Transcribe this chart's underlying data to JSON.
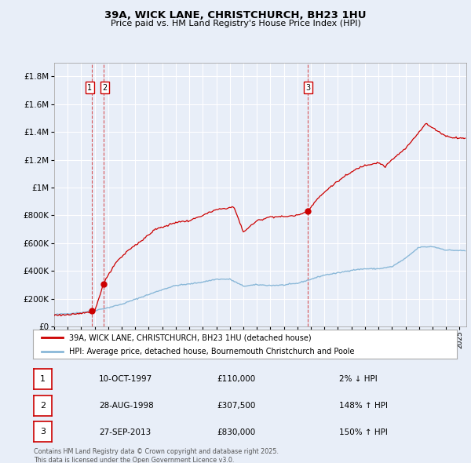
{
  "title": "39A, WICK LANE, CHRISTCHURCH, BH23 1HU",
  "subtitle": "Price paid vs. HM Land Registry's House Price Index (HPI)",
  "bg_color": "#e8eef8",
  "plot_bg_color": "#e8eef8",
  "red_color": "#cc0000",
  "blue_color": "#8ab8d8",
  "grid_color": "#ffffff",
  "sale_points": [
    {
      "date": 1997.78,
      "price": 110000,
      "label": "1"
    },
    {
      "date": 1998.65,
      "price": 307500,
      "label": "2"
    },
    {
      "date": 2013.74,
      "price": 830000,
      "label": "3"
    }
  ],
  "vline_dates": [
    1997.78,
    1998.65,
    2013.74
  ],
  "legend_entries": [
    "39A, WICK LANE, CHRISTCHURCH, BH23 1HU (detached house)",
    "HPI: Average price, detached house, Bournemouth Christchurch and Poole"
  ],
  "table_rows": [
    {
      "num": "1",
      "date": "10-OCT-1997",
      "price": "£110,000",
      "change": "2% ↓ HPI"
    },
    {
      "num": "2",
      "date": "28-AUG-1998",
      "price": "£307,500",
      "change": "148% ↑ HPI"
    },
    {
      "num": "3",
      "date": "27-SEP-2013",
      "price": "£830,000",
      "change": "150% ↑ HPI"
    }
  ],
  "footer": "Contains HM Land Registry data © Crown copyright and database right 2025.\nThis data is licensed under the Open Government Licence v3.0.",
  "ylim": [
    0,
    1900000
  ],
  "xlim": [
    1995,
    2025.5
  ],
  "yticks": [
    0,
    200000,
    400000,
    600000,
    800000,
    1000000,
    1200000,
    1400000,
    1600000,
    1800000
  ],
  "ytick_labels": [
    "£0",
    "£200K",
    "£400K",
    "£600K",
    "£800K",
    "£1M",
    "£1.2M",
    "£1.4M",
    "£1.6M",
    "£1.8M"
  ]
}
